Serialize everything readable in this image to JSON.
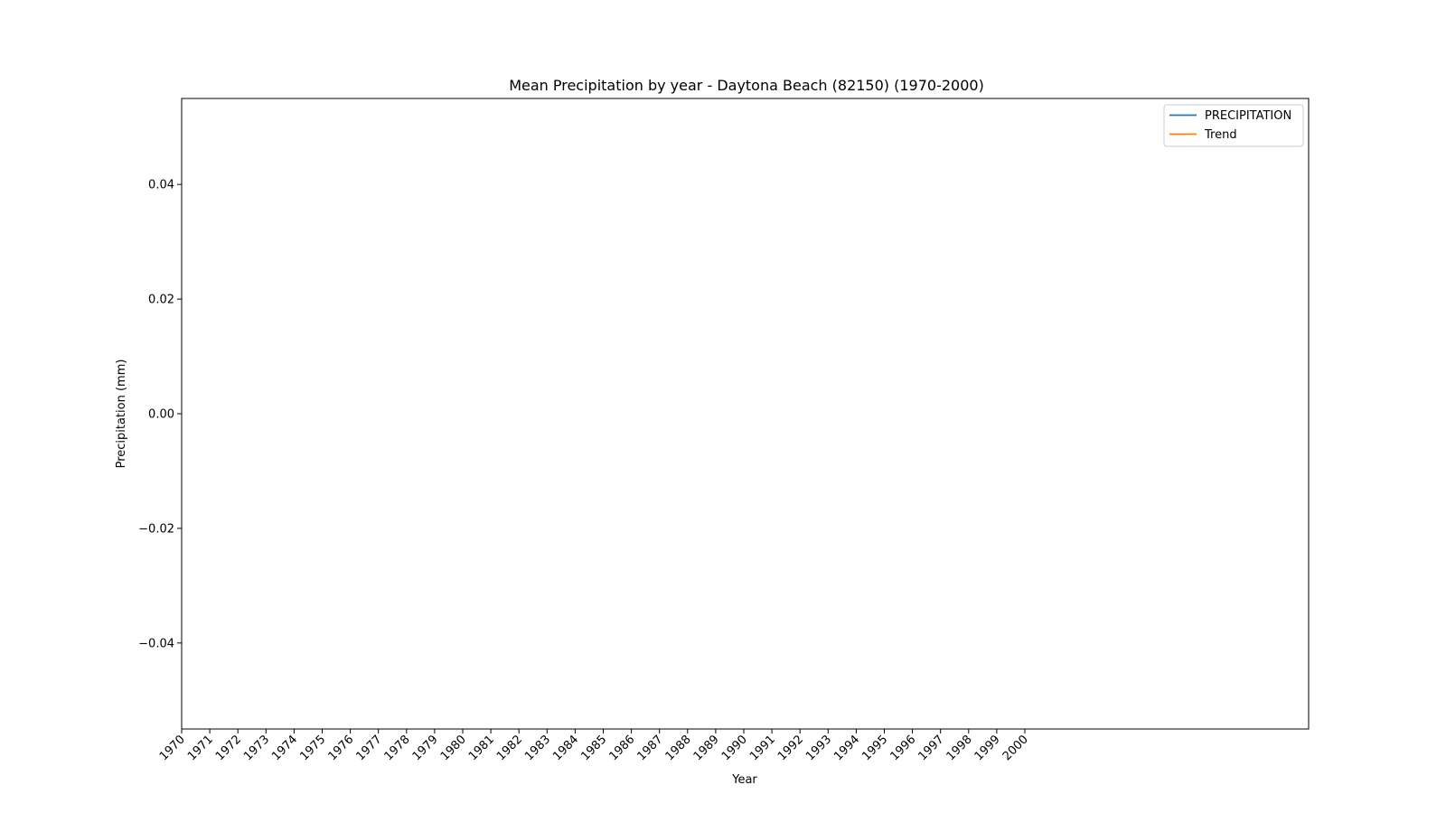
{
  "chart_data": {
    "type": "line",
    "title": "Mean Precipitation by year - Daytona Beach (82150) (1970-2000)",
    "xlabel": "Year",
    "ylabel": "Precipitation (mm)",
    "x_ticks": [
      "1970",
      "1971",
      "1972",
      "1973",
      "1974",
      "1975",
      "1976",
      "1977",
      "1978",
      "1979",
      "1980",
      "1981",
      "1982",
      "1983",
      "1984",
      "1985",
      "1986",
      "1987",
      "1988",
      "1989",
      "1990",
      "1991",
      "1992",
      "1993",
      "1994",
      "1995",
      "1996",
      "1997",
      "1998",
      "1999",
      "2000"
    ],
    "y_ticks": [
      0.04,
      0.02,
      0.0,
      -0.02,
      -0.04
    ],
    "y_tick_labels": [
      "0.04",
      "0.02",
      "0.00",
      "−0.02",
      "−0.04"
    ],
    "ylim": [
      -0.055,
      0.055
    ],
    "grid": false,
    "legend_position": "top-right",
    "series": [
      {
        "name": "PRECIPITATION",
        "color": "#1f77b4",
        "values": []
      },
      {
        "name": "Trend",
        "color": "#ff7f0e",
        "values": []
      }
    ]
  }
}
